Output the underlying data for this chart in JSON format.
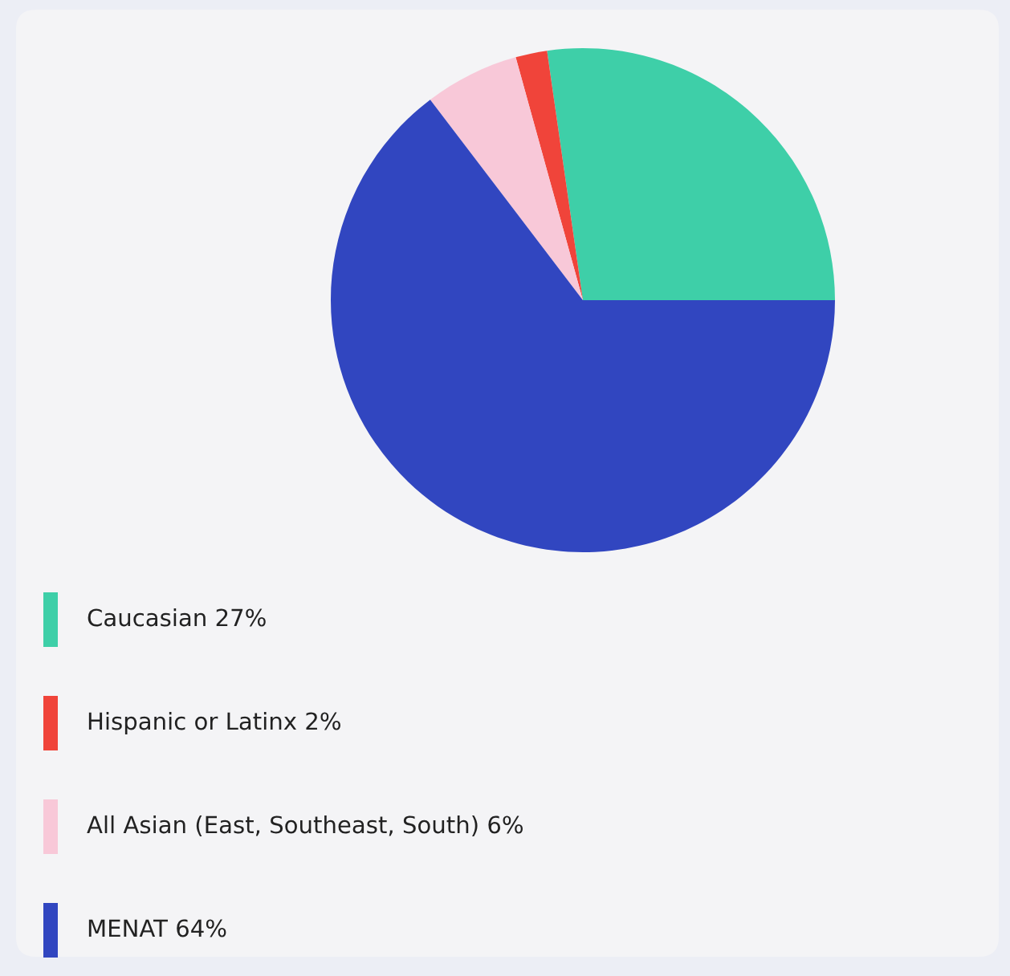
{
  "chart_data": {
    "type": "pie",
    "categories": [
      "Caucasian",
      "Hispanic or Latinx",
      "All Asian (East, Southeast, South)",
      "MENAT"
    ],
    "values": [
      27,
      2,
      6,
      64
    ],
    "colors": [
      "#3ecfa8",
      "#f0443a",
      "#f8c8d8",
      "#3146c0"
    ],
    "value_labels": [
      "27%",
      "2%",
      "6%",
      "64%"
    ],
    "legend": "bottom left"
  }
}
